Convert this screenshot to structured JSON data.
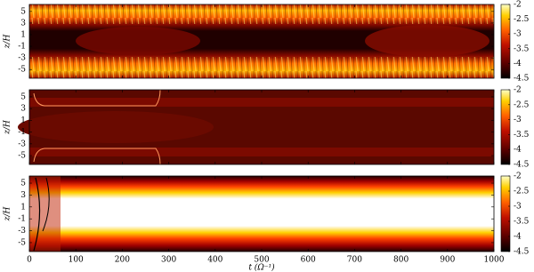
{
  "chart_data": [
    {
      "type": "heatmap",
      "ylabel": "z/H",
      "ylim": [
        -6.5,
        6.2
      ],
      "yticks": [
        -5,
        -3,
        -1,
        1,
        3,
        5
      ],
      "colorbar": {
        "clim": [
          -4.5,
          -2
        ],
        "ticks": [
          -4.5,
          -4,
          -3.5,
          -3,
          -2.5,
          -2
        ]
      }
    },
    {
      "type": "heatmap",
      "ylabel": "z/H",
      "ylim": [
        -6.5,
        6.2
      ],
      "yticks": [
        -5,
        -3,
        -1,
        1,
        3,
        5
      ],
      "colorbar": {
        "clim": [
          -4.5,
          -2
        ],
        "ticks": [
          -4.5,
          -4,
          -3.5,
          -3,
          -2.5,
          -2
        ]
      }
    },
    {
      "type": "heatmap",
      "ylabel": "z/H",
      "xlabel": "t (Ω⁻¹)",
      "ylim": [
        -6.5,
        6.2
      ],
      "yticks": [
        -5,
        -3,
        -1,
        1,
        3,
        5
      ],
      "xlim": [
        0,
        1000
      ],
      "xticks": [
        0,
        100,
        200,
        300,
        400,
        500,
        600,
        700,
        800,
        900,
        1000
      ],
      "colorbar": {
        "clim": [
          -4.5,
          -2
        ],
        "ticks": [
          -4.5,
          -4,
          -3.5,
          -3,
          -2.5,
          -2
        ]
      }
    }
  ]
}
